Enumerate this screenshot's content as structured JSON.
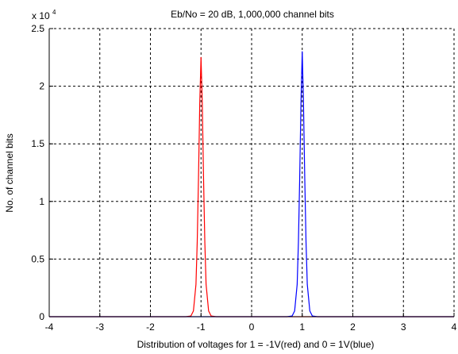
{
  "chart_data": {
    "type": "line",
    "title": "Eb/No = 20 dB, 1,000,000 channel bits",
    "xlabel": "Distribution of voltages for 1 = -1V(red) and 0 = 1V(blue)",
    "ylabel": "No. of channel bits",
    "xlim": [
      -4,
      4
    ],
    "ylim": [
      0,
      25000
    ],
    "x_ticks": [
      -4,
      -3,
      -2,
      -1,
      0,
      1,
      2,
      3,
      4
    ],
    "x_tick_labels": [
      "-4",
      "-3",
      "-2",
      "-1",
      "0",
      "1",
      "2",
      "3",
      "4"
    ],
    "y_ticks": [
      0,
      5000,
      10000,
      15000,
      20000,
      25000
    ],
    "y_tick_labels": [
      "0",
      "0.5",
      "1",
      "1.5",
      "2",
      "2.5"
    ],
    "y_scale_exponent": {
      "base": "x 10",
      "power": "4"
    },
    "grid": true,
    "series": [
      {
        "color": "#ff0000",
        "x": [
          -4,
          -1.3,
          -1.2,
          -1.15,
          -1.1,
          -1.075,
          -1.05,
          -1.025,
          -1.0,
          -0.975,
          -0.95,
          -0.925,
          -0.9,
          -0.85,
          -0.8,
          -0.7,
          4
        ],
        "y": [
          0,
          0,
          60,
          500,
          2800,
          6500,
          12000,
          18500,
          22500,
          18500,
          12000,
          6500,
          2800,
          500,
          60,
          0,
          0
        ]
      },
      {
        "color": "#0000ff",
        "x": [
          -4,
          0.7,
          0.8,
          0.85,
          0.9,
          0.925,
          0.95,
          0.975,
          1.0,
          1.025,
          1.05,
          1.075,
          1.1,
          1.15,
          1.2,
          1.3,
          4
        ],
        "y": [
          0,
          0,
          60,
          500,
          2800,
          6500,
          12000,
          18500,
          23000,
          18500,
          12000,
          6500,
          2800,
          500,
          60,
          0,
          0
        ]
      }
    ]
  }
}
